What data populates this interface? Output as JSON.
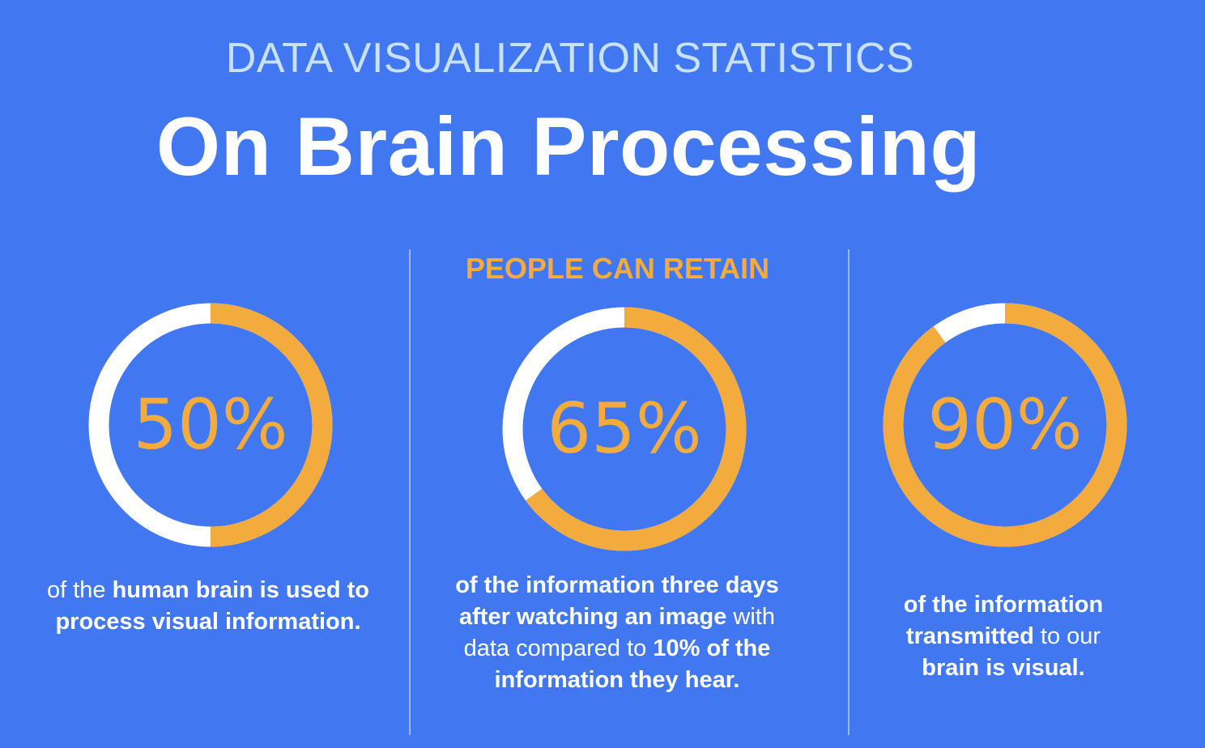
{
  "header": {
    "subtitle": "DATA VISUALIZATION STATISTICS",
    "title": "On Brain Processing"
  },
  "colors": {
    "background": "#4178f2",
    "accent": "#f3ab3d",
    "ring_base": "#ffffff",
    "subtitle": "#c8e1ff",
    "divider": "#9ab9f6"
  },
  "stats": [
    {
      "value": 50,
      "label": "50%",
      "description": [
        {
          "t": "of the ",
          "b": false
        },
        {
          "t": "human brain is used to process visual information.",
          "b": true
        }
      ]
    },
    {
      "heading": "PEOPLE CAN RETAIN",
      "value": 65,
      "label": "65%",
      "description": [
        {
          "t": "of the information three days after watching an image",
          "b": true
        },
        {
          "t": " with data compared to ",
          "b": false
        },
        {
          "t": "10% of the information they hear.",
          "b": true
        }
      ]
    },
    {
      "value": 90,
      "label": "90%",
      "description": [
        {
          "t": "of the information transmitted",
          "b": true
        },
        {
          "t": " to our ",
          "b": false
        },
        {
          "t": "brain is visual.",
          "b": true
        }
      ]
    }
  ],
  "chart_data": [
    {
      "type": "pie",
      "title": "",
      "values": [
        50,
        50
      ],
      "categories": [
        "50%",
        ""
      ]
    },
    {
      "type": "pie",
      "title": "PEOPLE CAN RETAIN",
      "values": [
        65,
        35
      ],
      "categories": [
        "65%",
        ""
      ]
    },
    {
      "type": "pie",
      "title": "",
      "values": [
        90,
        10
      ],
      "categories": [
        "90%",
        ""
      ]
    }
  ]
}
